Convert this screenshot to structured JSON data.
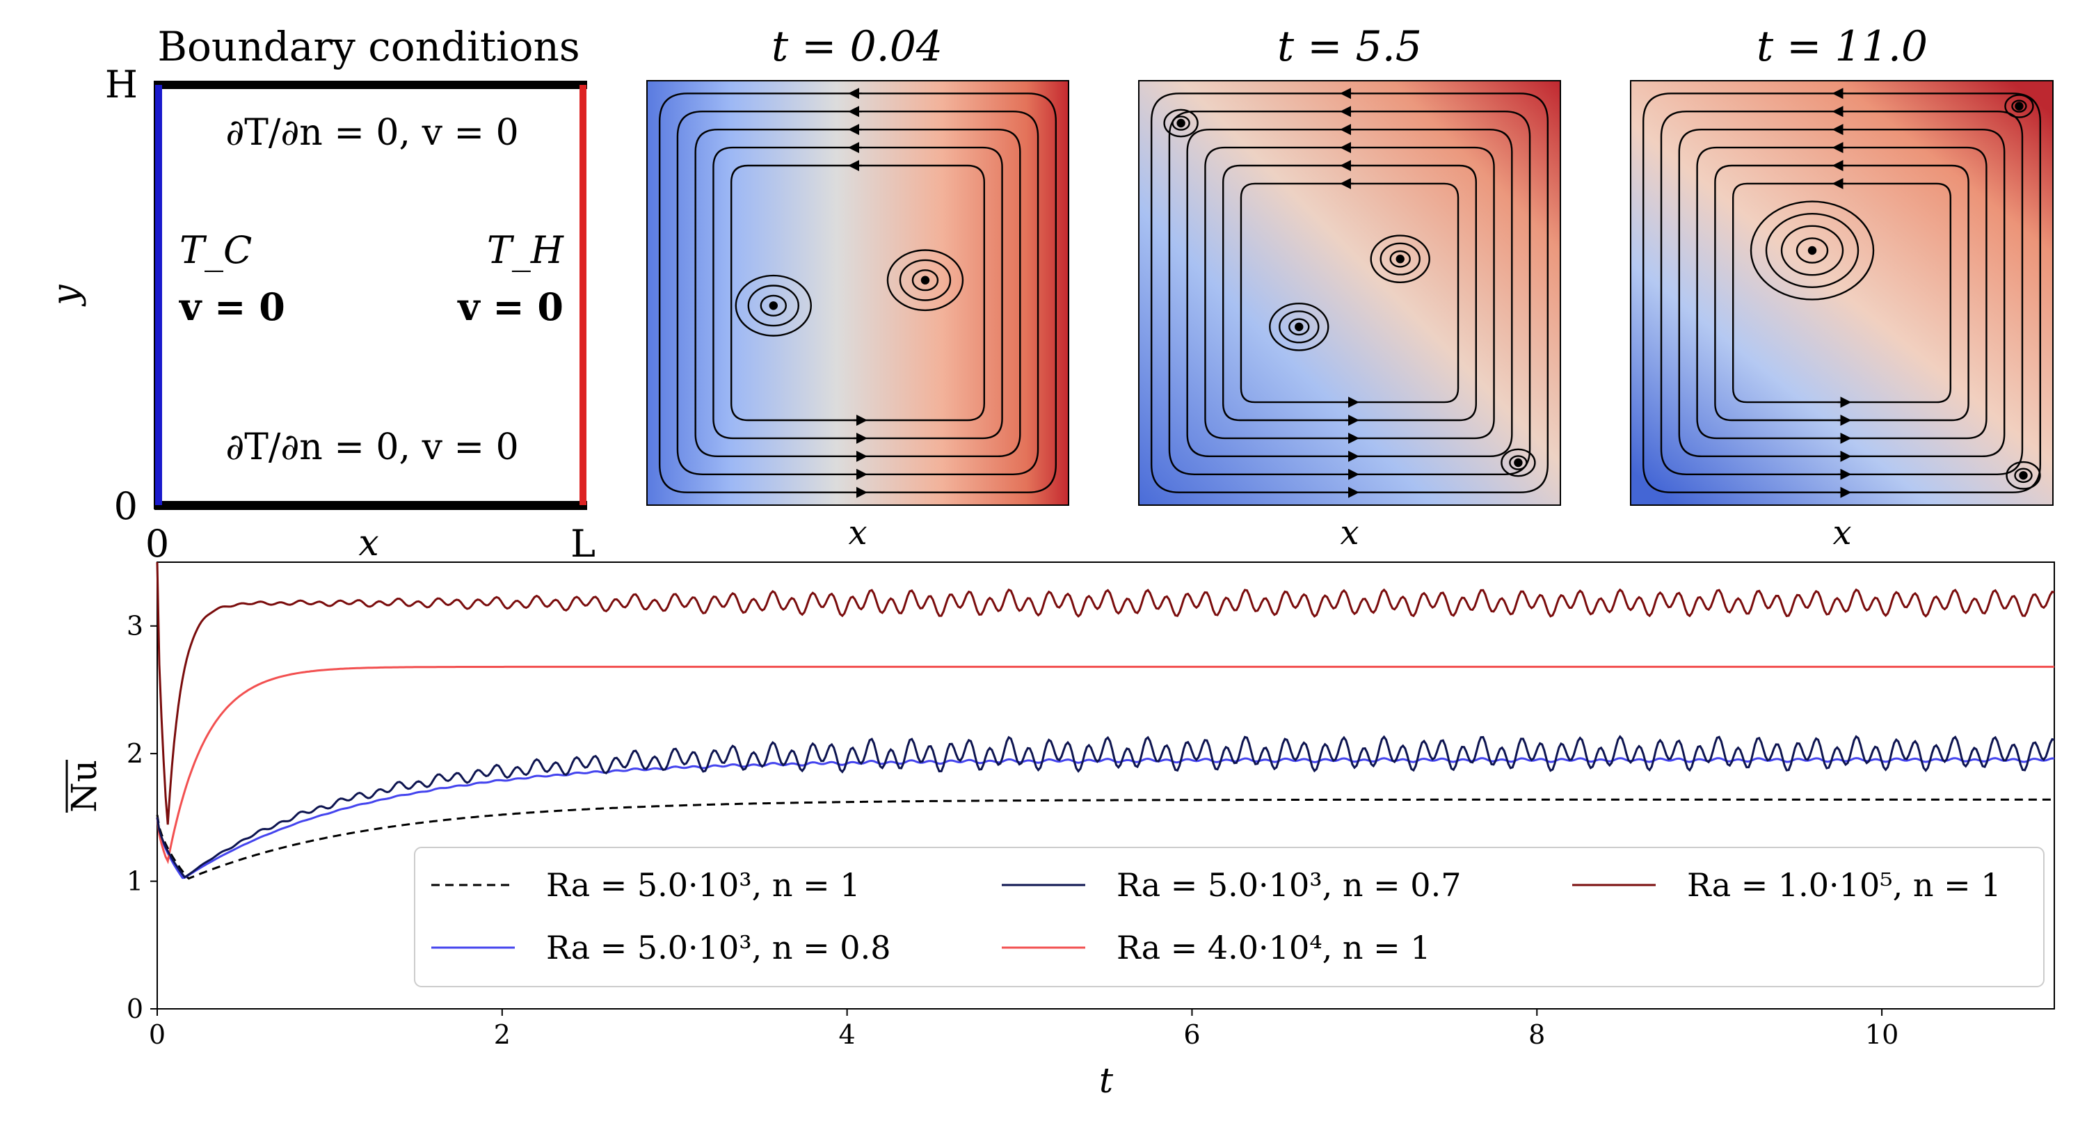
{
  "boundary_panel": {
    "title": "Boundary conditions",
    "y_top_label": "H",
    "y_bottom_label": "0",
    "x_left_label": "0",
    "x_right_label": "L",
    "xlabel": "x",
    "ylabel": "y",
    "top_bc": "∂T/∂n = 0,  v = 0",
    "bottom_bc": "∂T/∂n = 0,  v = 0",
    "left_temp": "T_C",
    "left_vel": "v = 0",
    "right_temp": "T_H",
    "right_vel": "v = 0",
    "cold_color": "#1a1acc",
    "hot_color": "#dd2222"
  },
  "snapshots": [
    {
      "title": "t = 0.04",
      "xlabel": "x"
    },
    {
      "title": "t = 5.5",
      "xlabel": "x"
    },
    {
      "title": "t = 11.0",
      "xlabel": "x"
    }
  ],
  "chart_data": {
    "type": "line",
    "xlabel": "t",
    "ylabel": "Nu (overline)",
    "xlim": [
      0,
      11
    ],
    "ylim": [
      0,
      3.5
    ],
    "xticks": [
      0,
      2,
      4,
      6,
      8,
      10
    ],
    "yticks": [
      0,
      1,
      2,
      3
    ],
    "series": [
      {
        "name": "Ra = 5.0·10³, n = 1",
        "color": "#000000",
        "dash": true,
        "start": 1.52,
        "min": 1.02,
        "tmin": 0.18,
        "final": 1.64,
        "tau": 1.1,
        "osc": 0.0
      },
      {
        "name": "Ra = 5.0·10³, n = 0.8",
        "color": "#4444ee",
        "dash": false,
        "start": 1.5,
        "min": 1.02,
        "tmin": 0.15,
        "final": 1.95,
        "tau": 1.05,
        "osc": 0.01
      },
      {
        "name": "Ra = 4.0·10⁴, n = 1",
        "color": "#f25050",
        "dash": false,
        "start": 1.5,
        "min": 1.15,
        "tmin": 0.06,
        "final": 2.68,
        "tau": 0.22,
        "osc": 0.0
      },
      {
        "name": "Ra = 5.0·10³, n = 0.7",
        "color": "#0d1450",
        "dash": false,
        "start": 1.5,
        "min": 1.03,
        "tmin": 0.16,
        "final": 2.0,
        "tau": 0.95,
        "osc": 0.09
      },
      {
        "name": "Ra = 1.0·10⁵, n = 1",
        "color": "#7a0c0c",
        "dash": false,
        "start": 3.5,
        "min": 1.42,
        "tmin": 0.06,
        "final": 3.18,
        "tau": 0.08,
        "osc": 0.07
      }
    ],
    "legend": {
      "placement": "lower-right",
      "columns": 3
    }
  }
}
